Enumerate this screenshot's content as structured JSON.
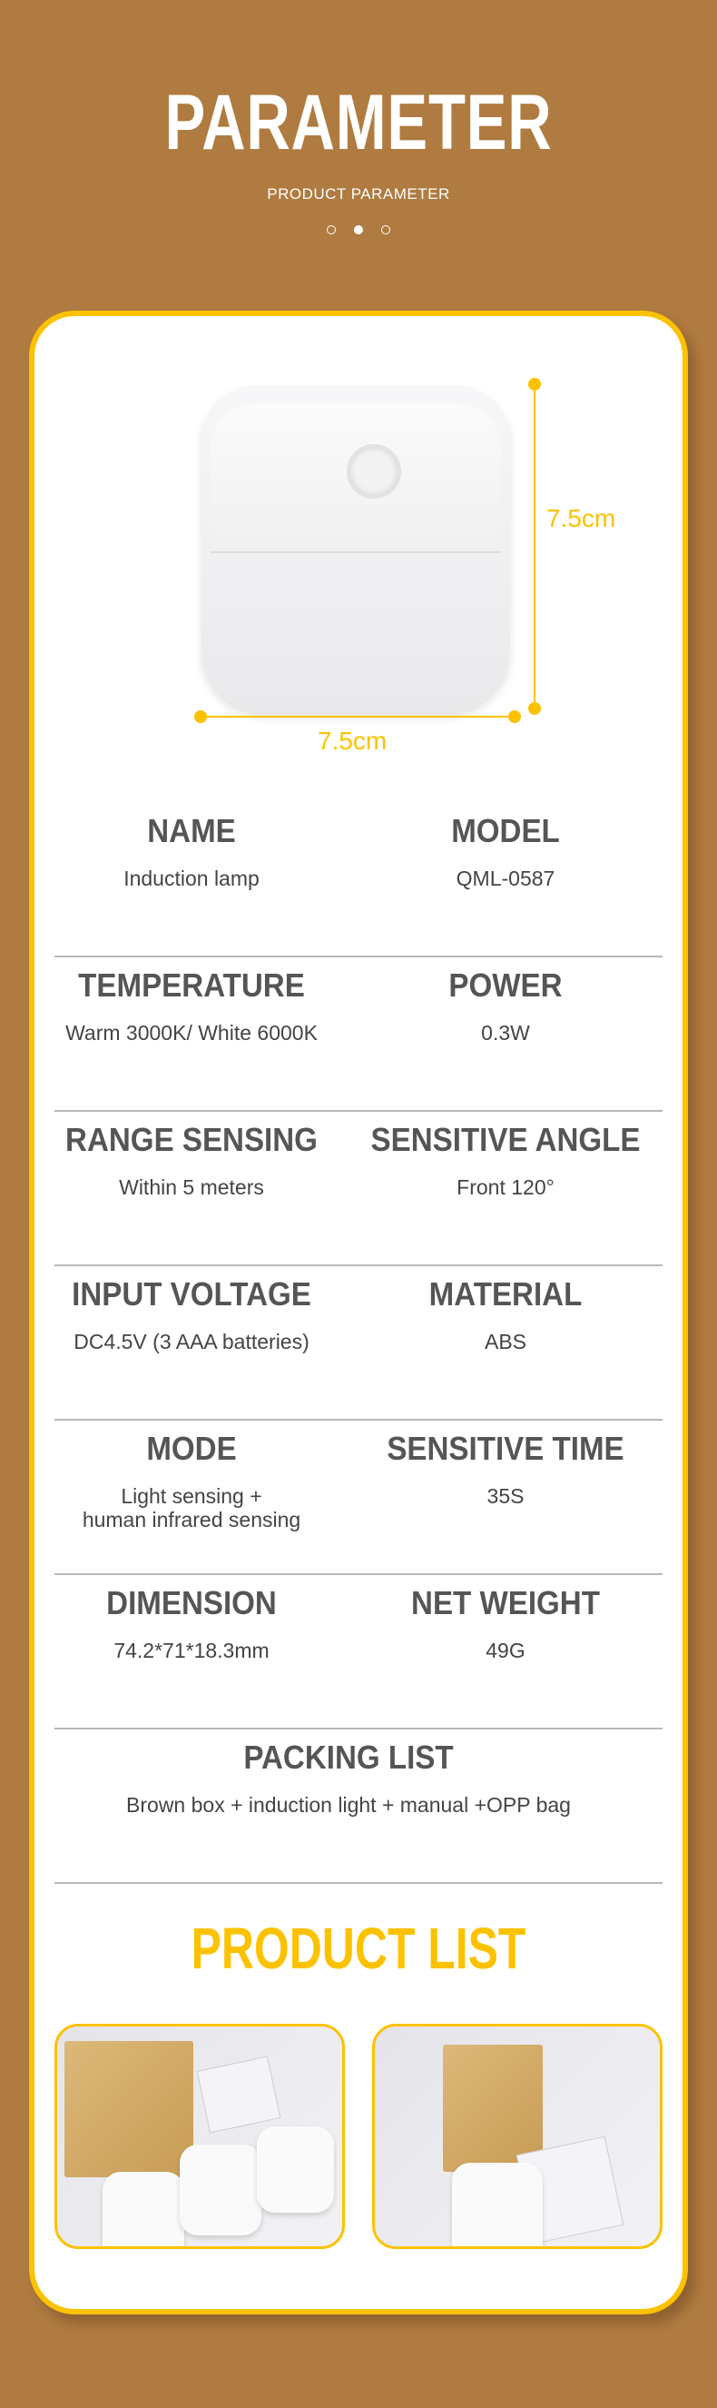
{
  "header": {
    "title": "PARAMETER",
    "subtitle": "PRODUCT PARAMETER",
    "pager": {
      "count": 3,
      "active": 2
    }
  },
  "dimensions": {
    "height_label": "7.5cm",
    "width_label": "7.5cm"
  },
  "specs": [
    {
      "left": {
        "label": "NAME",
        "value": "Induction lamp"
      },
      "right": {
        "label": "MODEL",
        "value": "QML-0587"
      }
    },
    {
      "left": {
        "label": "TEMPERATURE",
        "value": "Warm 3000K/ White 6000K"
      },
      "right": {
        "label": "POWER",
        "value": "0.3W"
      }
    },
    {
      "left": {
        "label": "RANGE SENSING",
        "value": "Within 5 meters"
      },
      "right": {
        "label": "SENSITIVE ANGLE",
        "value": "Front 120°"
      }
    },
    {
      "left": {
        "label": "INPUT VOLTAGE",
        "value": "DC4.5V (3 AAA batteries)"
      },
      "right": {
        "label": "MATERIAL",
        "value": "ABS"
      }
    },
    {
      "left": {
        "label": "MODE",
        "value": "Light sensing +\nhuman infrared sensing"
      },
      "right": {
        "label": "SENSITIVE TIME",
        "value": "35S"
      }
    },
    {
      "left": {
        "label": "DIMENSION",
        "value": "74.2*71*18.3mm"
      },
      "right": {
        "label": "NET WEIGHT",
        "value": "49G"
      }
    }
  ],
  "packing": {
    "label": "PACKING LIST",
    "value": "Brown box + induction light + manual +OPP bag"
  },
  "product_list": {
    "title": "PRODUCT LIST"
  },
  "colors": {
    "background": "#b07b40",
    "accent": "#fcc200",
    "heading": "#555555"
  }
}
